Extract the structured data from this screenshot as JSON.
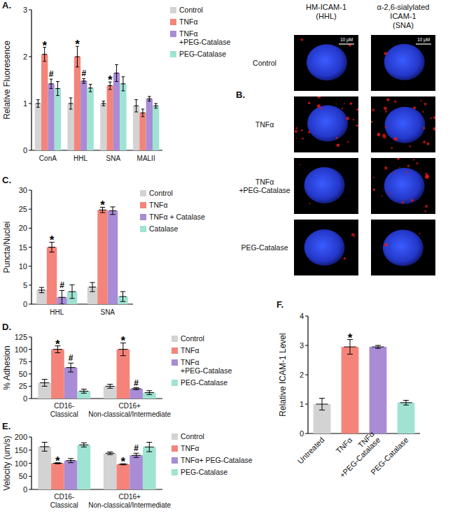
{
  "chart_data": [
    {
      "type": "bar",
      "title": "A.",
      "y_label": "Relative Fluoresence",
      "categories": [
        "ConA",
        "HHL",
        "SNA",
        "MALII"
      ],
      "ylim": [
        0,
        3
      ],
      "yticks": [
        0,
        1,
        2,
        3
      ],
      "legend": "right",
      "series": [
        {
          "name": "Control",
          "color": "#d3d3d3",
          "values": [
            1.0,
            1.0,
            1.0,
            0.95
          ],
          "errors": [
            0.08,
            0.12,
            0.05,
            0.13
          ]
        },
        {
          "name": "TNFα",
          "color": "#f4847a",
          "values": [
            2.05,
            2.0,
            1.38,
            0.8
          ],
          "errors": [
            0.15,
            0.22,
            0.08,
            0.08
          ],
          "annotations": [
            "*",
            "*",
            "*",
            null
          ]
        },
        {
          "name": "TNFα\n+PEG-Catalase",
          "color": "#a98bd6",
          "values": [
            1.42,
            1.48,
            1.65,
            1.1
          ],
          "errors": [
            0.1,
            0.05,
            0.18,
            0.05
          ],
          "annotations": [
            "#",
            "#",
            null,
            null
          ]
        },
        {
          "name": "PEG-Catalase",
          "color": "#9fe3d2",
          "values": [
            1.32,
            1.33,
            1.42,
            0.95
          ],
          "errors": [
            0.15,
            0.08,
            0.15,
            0.05
          ]
        }
      ]
    },
    {
      "type": "bar",
      "title": "C.",
      "y_label": "Puncta/Nuclei",
      "categories": [
        "HHL",
        "SNA"
      ],
      "ylim": [
        0,
        30
      ],
      "yticks": [
        0,
        5,
        10,
        15,
        20,
        25,
        30
      ],
      "legend": "right",
      "series": [
        {
          "name": "Control",
          "color": "#d3d3d3",
          "values": [
            3.7,
            4.5
          ],
          "errors": [
            0.7,
            1.2
          ]
        },
        {
          "name": "TNFα",
          "color": "#f4847a",
          "values": [
            15,
            24.8
          ],
          "errors": [
            1.3,
            0.7
          ],
          "annotations": [
            "*",
            "*"
          ]
        },
        {
          "name": "TNFα + Catalase",
          "color": "#a98bd6",
          "values": [
            1.8,
            24.6
          ],
          "errors": [
            1.8,
            1.0
          ],
          "annotations": [
            "#",
            null
          ]
        },
        {
          "name": "Catalase",
          "color": "#9fe3d2",
          "values": [
            3.3,
            2.0
          ],
          "errors": [
            1.8,
            1.3
          ]
        }
      ]
    },
    {
      "type": "bar",
      "title": "D.",
      "y_label": "% Adhesion",
      "categories": [
        "CD16-\nClassical",
        "CD16+\nNon-classical/Intermediate"
      ],
      "ylim": [
        0,
        125
      ],
      "yticks": [
        0,
        25,
        50,
        75,
        100,
        125
      ],
      "legend": "right",
      "series": [
        {
          "name": "Control",
          "color": "#d3d3d3",
          "values": [
            32,
            25
          ],
          "errors": [
            7,
            4
          ]
        },
        {
          "name": "TNFα",
          "color": "#f4847a",
          "values": [
            100,
            100
          ],
          "errors": [
            7,
            13
          ],
          "annotations": [
            "*",
            "*"
          ]
        },
        {
          "name": "TNFα\n+PEG-Catalase",
          "color": "#a98bd6",
          "values": [
            63,
            20
          ],
          "errors": [
            9,
            2
          ],
          "annotations": [
            "#",
            "#"
          ]
        },
        {
          "name": "PEG-Catalase",
          "color": "#9fe3d2",
          "values": [
            15,
            12
          ],
          "errors": [
            4,
            4
          ]
        }
      ]
    },
    {
      "type": "bar",
      "title": "E.",
      "y_label": "Velocity (um/s)",
      "categories": [
        "CD16-\nClassical",
        "CD16+\nNon-classical/Intermediate"
      ],
      "ylim": [
        0,
        200
      ],
      "yticks": [
        0,
        50,
        100,
        150,
        200
      ],
      "legend": "right",
      "series": [
        {
          "name": "Control",
          "color": "#d3d3d3",
          "values": [
            163,
            138
          ],
          "errors": [
            17,
            5
          ]
        },
        {
          "name": "TNFα",
          "color": "#f4847a",
          "values": [
            100,
            96
          ],
          "errors": [
            2,
            2
          ],
          "annotations": [
            "*",
            "*"
          ]
        },
        {
          "name": "TNFα+ PEG-Catalase",
          "color": "#a98bd6",
          "values": [
            110,
            130
          ],
          "errors": [
            8,
            8
          ],
          "annotations": [
            null,
            "#"
          ]
        },
        {
          "name": "PEG-Catalase",
          "color": "#9fe3d2",
          "values": [
            170,
            162
          ],
          "errors": [
            8,
            18
          ]
        }
      ]
    },
    {
      "type": "bar",
      "title": "F.",
      "y_label": "Relative ICAM-1 Level",
      "categories": [
        "Untreated",
        "TNFα",
        "TNFα\n+PEG-Catalase",
        "PEG-Catalase"
      ],
      "ylim": [
        0,
        4
      ],
      "yticks": [
        0,
        1,
        2,
        3,
        4
      ],
      "values": [
        1.0,
        2.95,
        2.95,
        1.05
      ],
      "errors": [
        0.2,
        0.25,
        0.05,
        0.08
      ],
      "colors": [
        "#d3d3d3",
        "#f4847a",
        "#a98bd6",
        "#9fe3d2"
      ],
      "annotations": [
        null,
        "*",
        null,
        null
      ]
    }
  ],
  "image_panel": {
    "title": "B.",
    "columns": [
      "HM-ICAM-1\n(HHL)",
      "α-2,6-sialylated\nICAM-1\n(SNA)"
    ],
    "rows": [
      "Control",
      "TNFα",
      "TNFα\n+PEG-Catalase",
      "PEG-Catalase"
    ],
    "scale_bar": "10 μM"
  }
}
